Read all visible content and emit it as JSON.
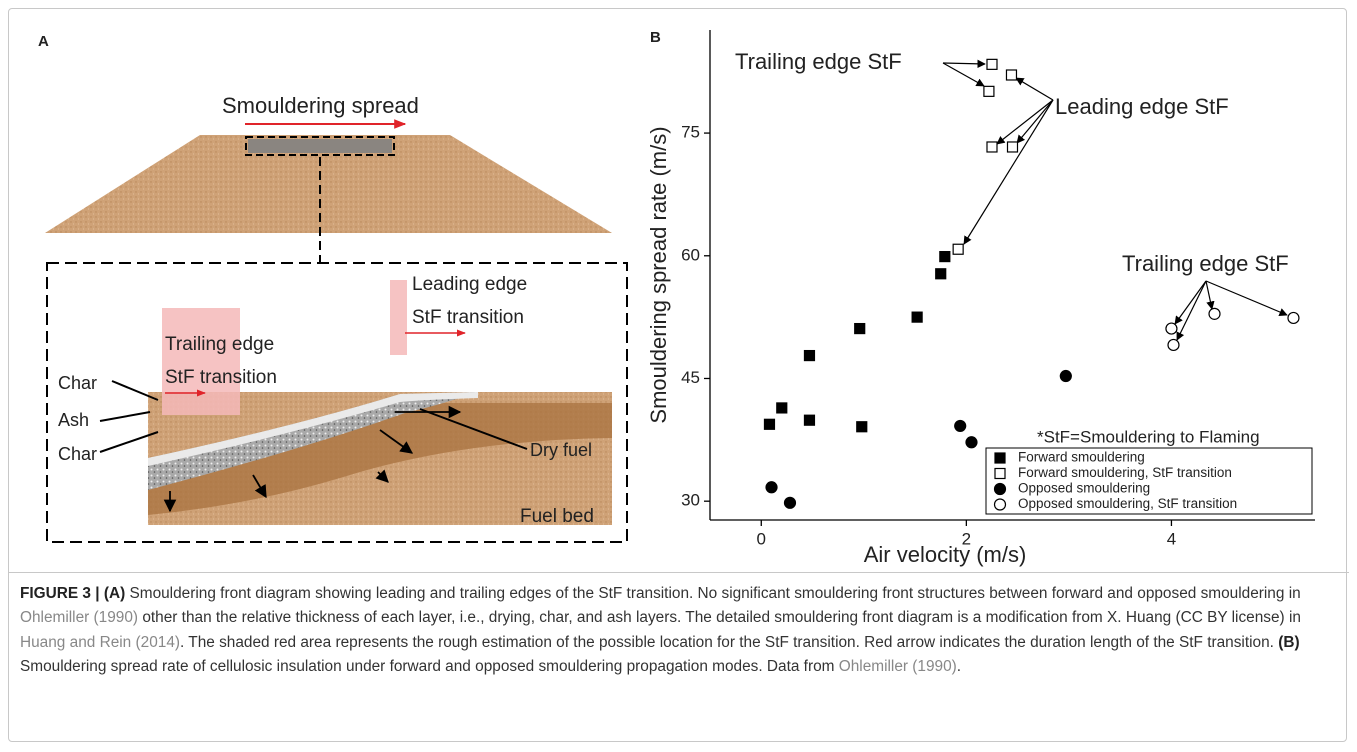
{
  "panel_a": {
    "panel_label": "A",
    "title": "Smouldering spread",
    "labels": [
      "Leading edge",
      "StF transition",
      "Trailing edge",
      "StF transition",
      "Char",
      "Ash",
      "Char",
      "Dry fuel",
      "Fuel bed"
    ]
  },
  "chart_data": {
    "type": "scatter",
    "panel_label": "B",
    "x_label": "Air velocity (m/s)",
    "y_label": "Smouldering spread rate (m/s)",
    "xlim": [
      -0.5,
      5.4
    ],
    "ylim": [
      27.7,
      87.6
    ],
    "xticks": [
      0,
      2,
      4
    ],
    "yticks": [
      30,
      45,
      60,
      75
    ],
    "legend": "lower right",
    "annotations": [
      "Trailing edge StF",
      "Leading edge StF",
      "Trailing edge StF",
      "*StF=Smouldering to Flaming"
    ],
    "series": [
      {
        "name": "Forward smouldering",
        "color": "#000000",
        "marker": "square",
        "filled": true,
        "x": [
          0.08,
          0.2,
          0.47,
          0.47,
          0.96,
          0.98,
          1.52,
          1.75,
          1.79
        ],
        "values": [
          39.4,
          41.4,
          47.8,
          39.9,
          51.1,
          39.1,
          52.5,
          57.8,
          59.9
        ]
      },
      {
        "name": "Forward smouldering, StF transition",
        "color": "#000000",
        "marker": "square",
        "filled": false,
        "x": [
          1.92,
          2.25,
          2.45,
          2.22,
          2.25,
          2.44
        ],
        "values": [
          60.8,
          73.3,
          73.3,
          80.1,
          83.4,
          82.1
        ]
      },
      {
        "name": "Opposed smouldering",
        "color": "#000000",
        "marker": "circle",
        "filled": true,
        "x": [
          0.1,
          0.28,
          1.94,
          2.05,
          2.97
        ],
        "values": [
          31.7,
          29.8,
          39.2,
          37.2,
          45.3
        ]
      },
      {
        "name": "Opposed smouldering, StF transition",
        "color": "#000000",
        "marker": "circle",
        "filled": false,
        "x": [
          4.0,
          4.02,
          4.42,
          5.19
        ],
        "values": [
          51.1,
          49.1,
          52.9,
          52.4
        ]
      }
    ]
  },
  "caption": {
    "parts": [
      "FIGURE 3 | (A)",
      " Smouldering front diagram showing leading and trailing edges of the StF transition. No significant smouldering front structures between forward and opposed smouldering in ",
      "Ohlemiller (1990)",
      " other than the relative thickness of each layer, i.e., drying, char, and ash layers. The detailed smouldering front diagram is a modification from X. Huang (CC BY license) in ",
      "Huang and Rein (2014)",
      ". The shaded red area represents the rough estimation of the possible location for the StF transition. Red arrow indicates the duration length of the StF transition. ",
      "(B)",
      " Smouldering spread rate of cellulosic insulation under forward and opposed smouldering propagation modes. Data from ",
      "Ohlemiller (1990)",
      "."
    ]
  }
}
